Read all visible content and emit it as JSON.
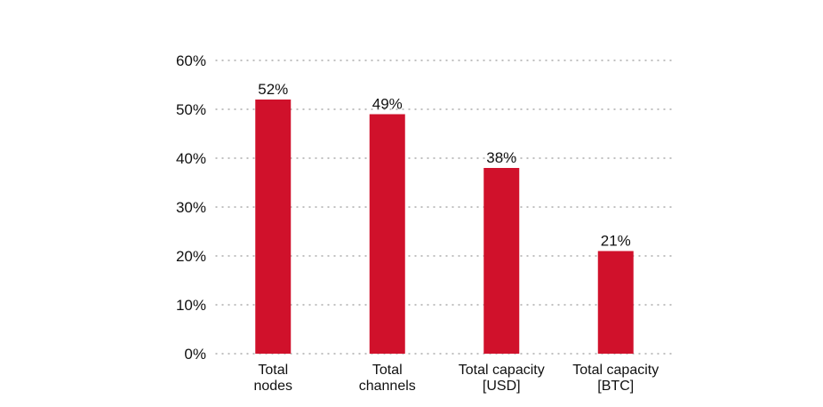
{
  "chart_data": {
    "type": "bar",
    "title": "",
    "xlabel": "",
    "ylabel": "",
    "ylim": [
      0,
      60
    ],
    "grid": true,
    "y_ticks": [
      {
        "value": 0,
        "label": "0%"
      },
      {
        "value": 10,
        "label": "10%"
      },
      {
        "value": 20,
        "label": "20%"
      },
      {
        "value": 30,
        "label": "30%"
      },
      {
        "value": 40,
        "label": "40%"
      },
      {
        "value": 50,
        "label": "50%"
      },
      {
        "value": 60,
        "label": "60%"
      }
    ],
    "categories": [
      {
        "lines": [
          "Total",
          "nodes"
        ]
      },
      {
        "lines": [
          "Total",
          "channels"
        ]
      },
      {
        "lines": [
          "Total capacity",
          "[USD]"
        ]
      },
      {
        "lines": [
          "Total capacity",
          "[BTC]"
        ]
      }
    ],
    "values": [
      52,
      49,
      38,
      21
    ],
    "value_labels": [
      "52%",
      "49%",
      "38%",
      "21%"
    ],
    "bar_color": "#d0112b",
    "grid_color": "#9a9a9a",
    "text_color": "#111111"
  }
}
